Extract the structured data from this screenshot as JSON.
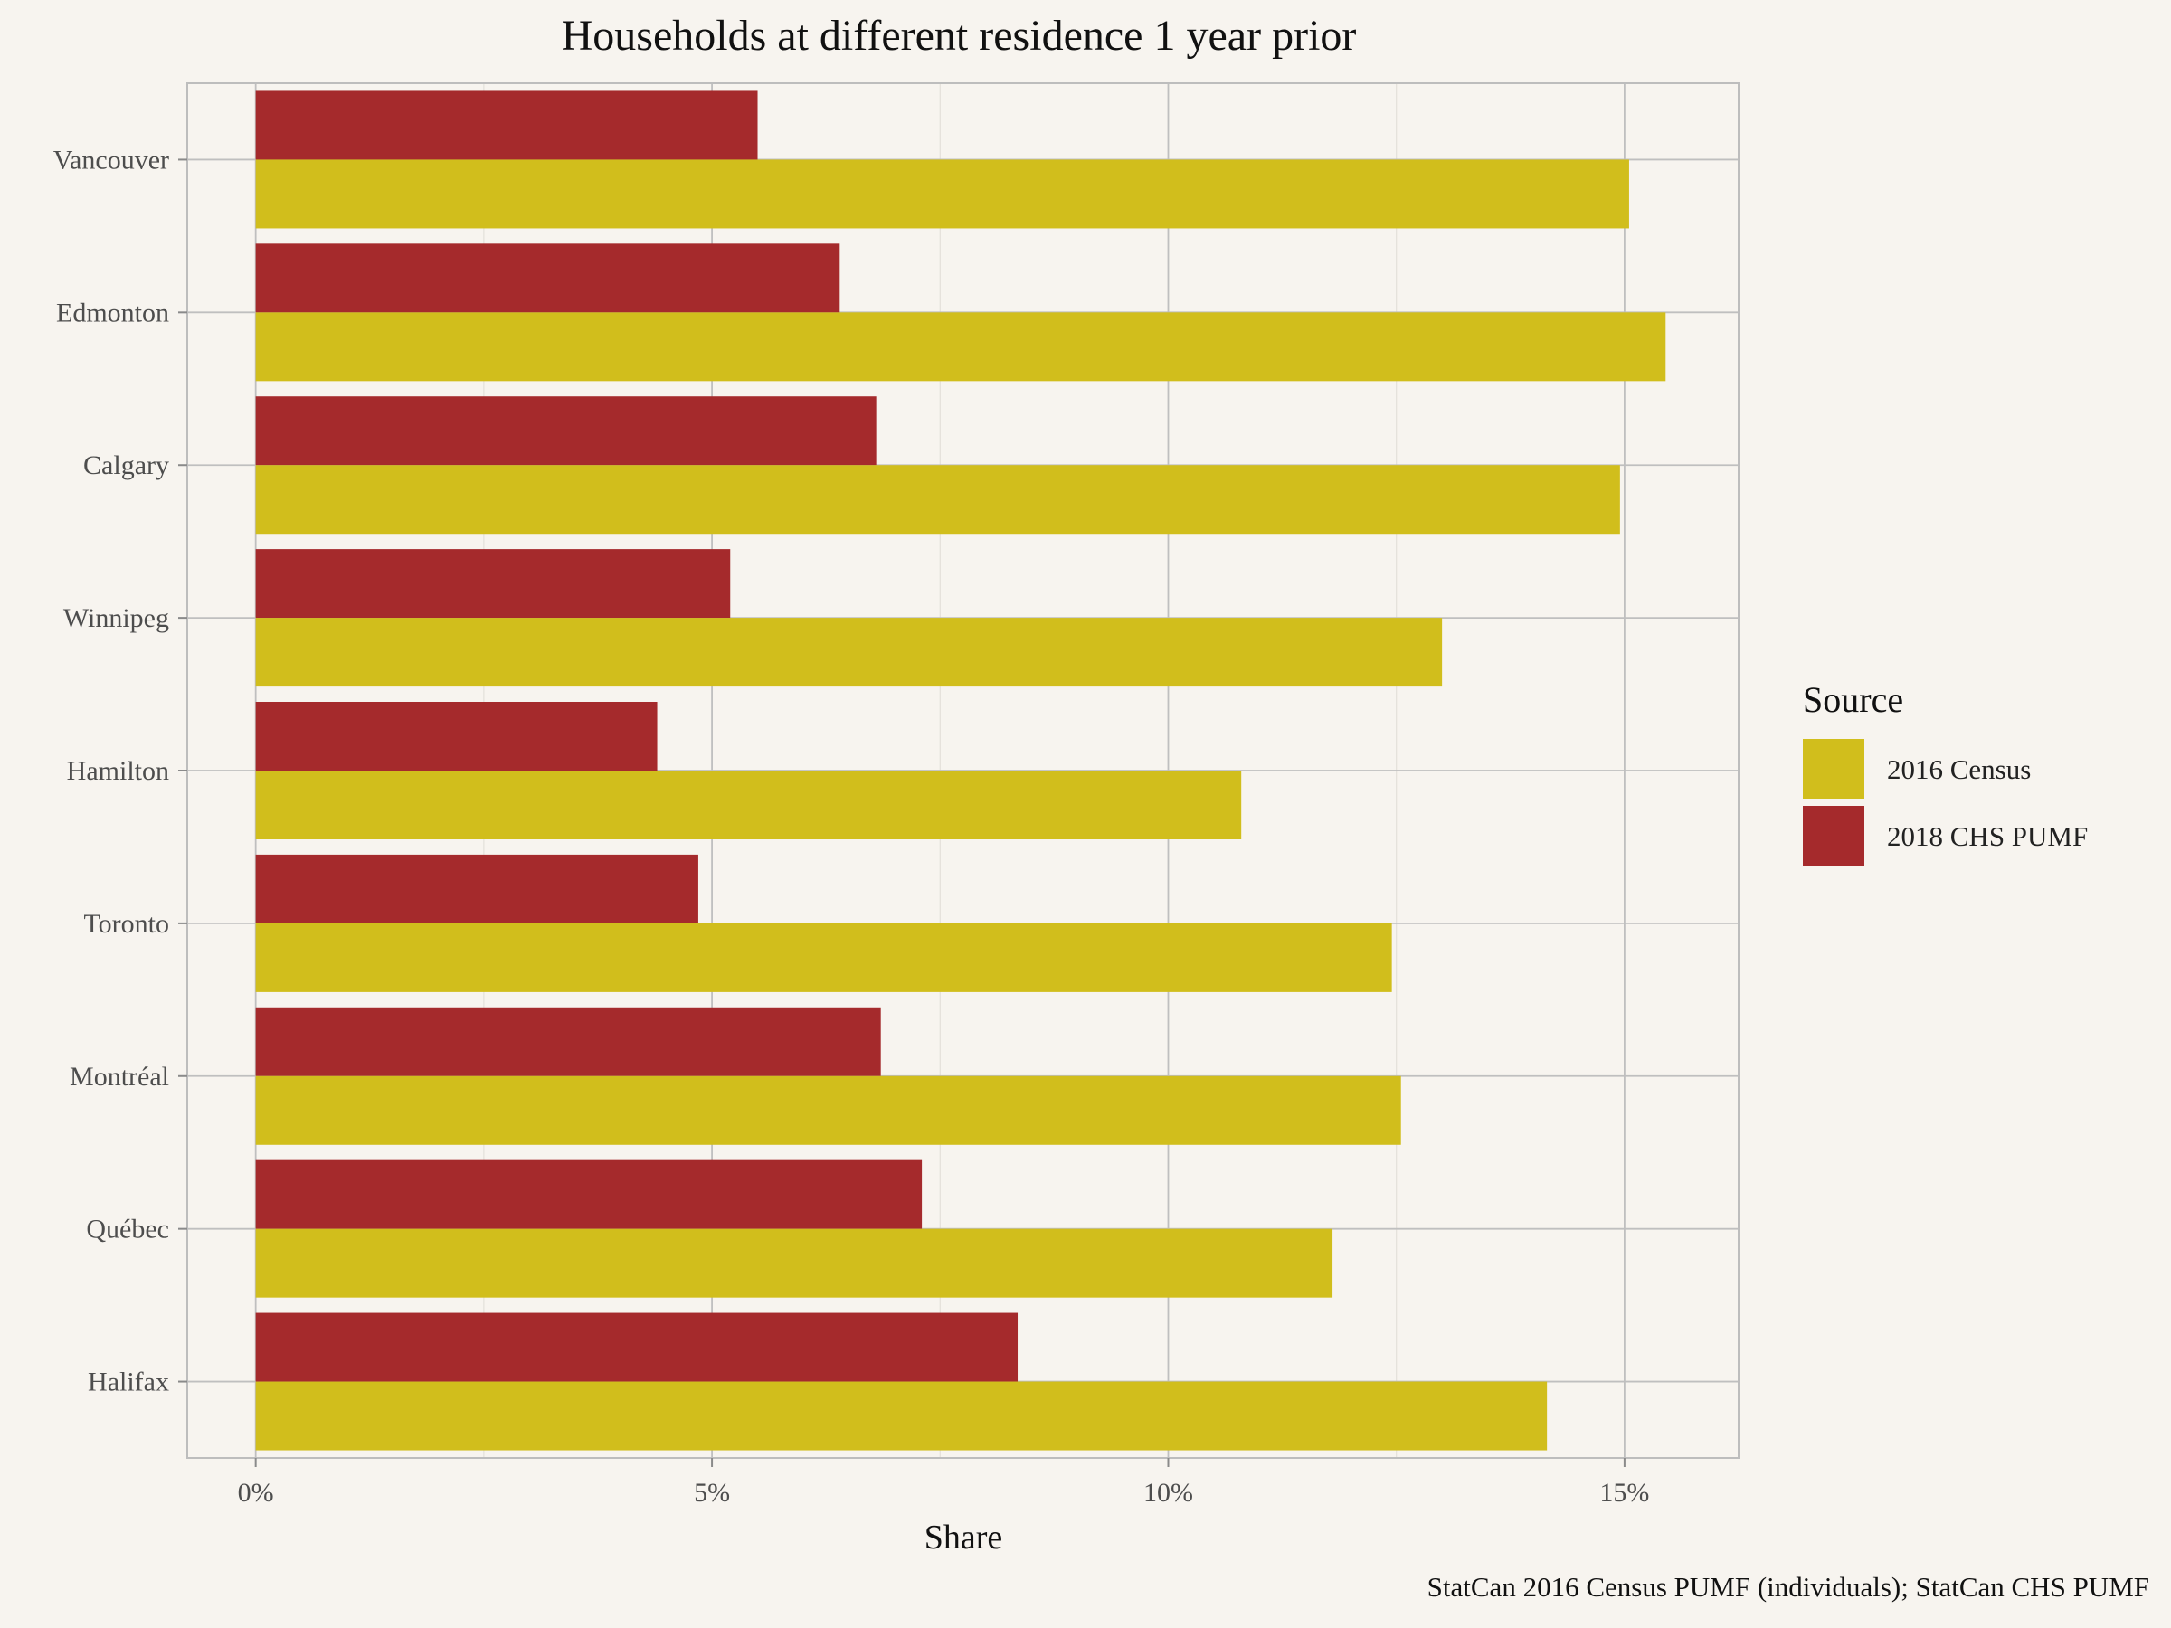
{
  "chart_data": {
    "type": "bar",
    "orientation": "horizontal",
    "title": "Households at different residence 1 year prior",
    "xlabel": "Share",
    "ylabel": "",
    "caption": "StatCan 2016 Census PUMF (individuals); StatCan CHS PUMF",
    "categories": [
      "Vancouver",
      "Edmonton",
      "Calgary",
      "Winnipeg",
      "Hamilton",
      "Toronto",
      "Montréal",
      "Québec",
      "Halifax"
    ],
    "series": [
      {
        "name": "2016 Census",
        "color": "#d1be1c",
        "values": [
          15.05,
          15.45,
          14.95,
          13.0,
          10.8,
          12.45,
          12.55,
          11.8,
          14.15
        ]
      },
      {
        "name": "2018 CHS PUMF",
        "color": "#a52a2c",
        "values": [
          5.5,
          6.4,
          6.8,
          5.2,
          4.4,
          4.85,
          6.85,
          7.3,
          8.35
        ]
      }
    ],
    "xlim": [
      -0.75,
      16.25
    ],
    "xticks": [
      0,
      5,
      10,
      15
    ],
    "xtick_labels": [
      "0%",
      "5%",
      "10%",
      "15%"
    ],
    "grid": true,
    "legend": {
      "title": "Source",
      "position": "right"
    },
    "background": "#f7f4ef",
    "grid_color": "#bfbfbf"
  }
}
